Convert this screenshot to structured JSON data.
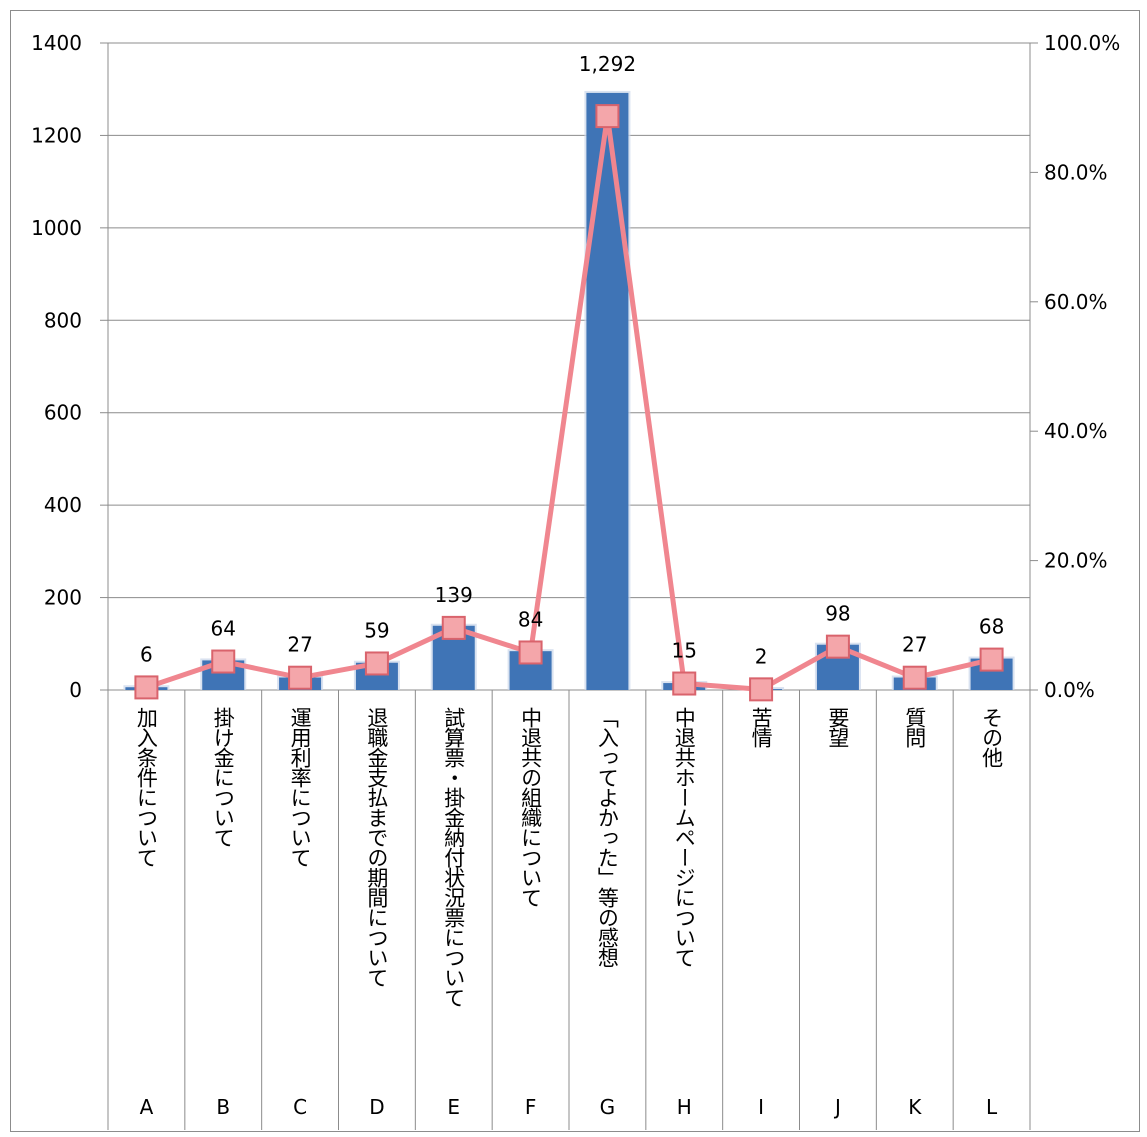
{
  "chart_data": {
    "type": "bar+line",
    "categories": [
      {
        "letter": "A",
        "label": "加入条件について"
      },
      {
        "letter": "B",
        "label": "掛け金について"
      },
      {
        "letter": "C",
        "label": "運用利率について"
      },
      {
        "letter": "D",
        "label": "退職金支払までの期間について"
      },
      {
        "letter": "E",
        "label": "試算票・掛金納付状況票について"
      },
      {
        "letter": "F",
        "label": "中退共の組織について"
      },
      {
        "letter": "G",
        "label": "「入ってよかった」等の感想"
      },
      {
        "letter": "H",
        "label": "中退共ホームページについて"
      },
      {
        "letter": "I",
        "label": "苦情"
      },
      {
        "letter": "J",
        "label": "要望"
      },
      {
        "letter": "K",
        "label": "質問"
      },
      {
        "letter": "L",
        "label": "その他"
      }
    ],
    "bar_series": {
      "values": [
        6,
        64,
        27,
        59,
        139,
        84,
        1292,
        15,
        2,
        98,
        27,
        68
      ],
      "data_labels": [
        "6",
        "64",
        "27",
        "59",
        "139",
        "84",
        "1,292",
        "15",
        "2",
        "98",
        "27",
        "68"
      ],
      "color": "#3f74b6"
    },
    "line_series": {
      "values": [
        0.4,
        4.4,
        1.9,
        4.1,
        9.6,
        5.8,
        88.7,
        1.0,
        0.1,
        6.7,
        1.9,
        4.7
      ],
      "color": "#f0868f",
      "marker_fill": "#f4a6aa",
      "marker_edge": "#d9636c"
    },
    "y_left": {
      "min": 0,
      "max": 1400,
      "ticks": [
        "0",
        "200",
        "400",
        "600",
        "800",
        "1000",
        "1200",
        "1400"
      ]
    },
    "y_right": {
      "min": 0,
      "max": 100,
      "ticks": [
        "0.0%",
        "20.0%",
        "40.0%",
        "60.0%",
        "80.0%",
        "100.0%"
      ]
    },
    "grid": true
  }
}
